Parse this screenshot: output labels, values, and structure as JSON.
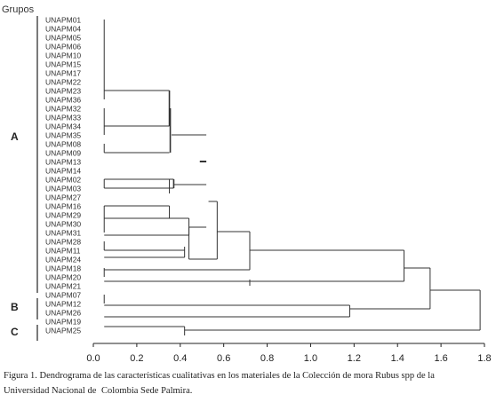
{
  "header_label": "Grupos",
  "groups": [
    "A",
    "B",
    "C"
  ],
  "leaves": [
    "UNAPM01",
    "UNAPM04",
    "UNAPM05",
    "UNAPM06",
    "UNAPM10",
    "UNAPM15",
    "UNAPM17",
    "UNAPM22",
    "UNAPM23",
    "UNAPM36",
    "UNAPM32",
    "UNAPM33",
    "UNAPM34",
    "UNAPM35",
    "UNAPM08",
    "UNAPM09",
    "UNAPM13",
    "UNAPM14",
    "UNAPM02",
    "UNAPM03",
    "UNAPM27",
    "UNAPM16",
    "UNAPM29",
    "UNAPM30",
    "UNAPM31",
    "UNAPM28",
    "UNAPM11",
    "UNAPM24",
    "UNAPM18",
    "UNAPM20",
    "UNAPM21",
    "UNAPM07",
    "UNAPM12",
    "UNAPM26",
    "UNAPM19",
    "UNAPM25"
  ],
  "axis": {
    "ticks": [
      "0.0",
      "0.2",
      "0.4",
      "0.6",
      "0.8",
      "1.0",
      "1.2",
      "1.4",
      "1.6",
      "1.8"
    ],
    "min": 0.0,
    "max": 1.8
  },
  "merges": [
    {
      "children": [
        "r0-9"
      ],
      "height": 0.35
    },
    {
      "children": [
        "r10-13"
      ],
      "height": 0.35
    },
    {
      "children": [
        "r14-15"
      ],
      "height": 0.35
    },
    {
      "children": [
        "r18-19"
      ],
      "height": 0.37
    },
    {
      "children": [
        "r21-24"
      ],
      "height": 0.44
    },
    {
      "children": [
        "r25-26"
      ],
      "height": 0.42
    },
    {
      "children": [
        "rA-core"
      ],
      "height": 0.57
    },
    {
      "children": [
        "rA-mid"
      ],
      "height": 0.72
    },
    {
      "children": [
        "r28-29"
      ],
      "height": 0.72
    },
    {
      "children": [
        "rA-all"
      ],
      "height": 1.43
    },
    {
      "children": [
        "rA",
        "rB"
      ],
      "height": 1.55
    },
    {
      "children": [
        "rAB",
        "rC"
      ],
      "height": 1.78
    }
  ],
  "caption": {
    "line1": "Figura 1. Dendrograma de las características cualitativas en los materiales de la Colección de mora Rubus spp de la",
    "line2_a": "Universidad Nacional de",
    "line2_b": "Colombia Sede Palmira."
  }
}
